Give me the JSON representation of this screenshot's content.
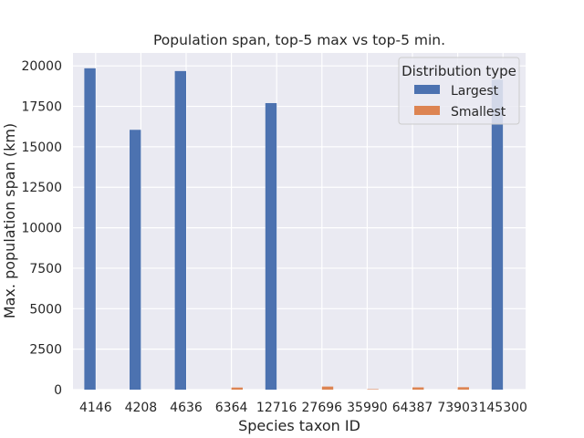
{
  "chart_data": {
    "type": "bar",
    "title": "Population span, top-5 max vs top-5 min.",
    "xlabel": "Species taxon ID",
    "ylabel": "Max. population span (km)",
    "categories": [
      "4146",
      "4208",
      "4636",
      "6364",
      "12716",
      "27696",
      "35990",
      "64387",
      "73903",
      "145300"
    ],
    "series": [
      {
        "name": "Largest",
        "color": "#4c72b0",
        "values": [
          19850,
          16050,
          19680,
          0,
          17700,
          0,
          0,
          0,
          0,
          19150
        ]
      },
      {
        "name": "Smallest",
        "color": "#dd8452",
        "values": [
          0,
          0,
          0,
          130,
          0,
          190,
          30,
          140,
          150,
          0
        ]
      }
    ],
    "ylim": [
      0,
      20800
    ],
    "yticks": [
      0,
      2500,
      5000,
      7500,
      10000,
      12500,
      15000,
      17500,
      20000
    ],
    "grid": true,
    "legend": {
      "title": "Distribution type",
      "position": "top-right"
    },
    "colors": {
      "background": "#eaeaf2",
      "grid": "#ffffff"
    }
  }
}
